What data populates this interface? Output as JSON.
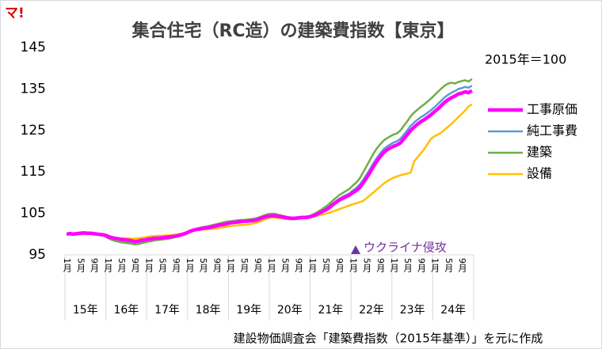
{
  "logo": "マ!",
  "chart_data": {
    "type": "line",
    "title": "集合住宅（RC造）の建築費指数【東京】",
    "note": "2015年＝100",
    "source": "建設物価調査会「建築費指数（2015年基準）」を元に作成",
    "annotation": "ウクライナ侵攻",
    "categories": [
      "1月",
      null,
      null,
      null,
      "5月",
      null,
      null,
      null,
      "9月",
      null,
      null,
      null,
      "1月",
      null,
      null,
      null,
      "5月",
      null,
      null,
      null,
      "9月",
      null,
      null,
      null,
      "1月",
      null,
      null,
      null,
      "5月",
      null,
      null,
      null,
      "9月",
      null,
      null,
      null,
      "1月",
      null,
      null,
      null,
      "5月",
      null,
      null,
      null,
      "9月",
      null,
      null,
      null,
      "1月",
      null,
      null,
      null,
      "5月",
      null,
      null,
      null,
      "9月",
      null,
      null,
      null,
      "1月",
      null,
      null,
      null,
      "5月",
      null,
      null,
      null,
      "9月",
      null,
      null,
      null,
      "1月",
      null,
      null,
      null,
      "5月",
      null,
      null,
      null,
      "9月",
      null,
      null,
      null,
      "1月",
      null,
      null,
      null,
      "5月",
      null,
      null,
      null,
      "9月",
      null,
      null,
      null,
      "1月",
      null,
      null,
      null,
      "5月",
      null,
      null,
      null,
      "9月",
      null,
      null,
      null,
      "1月",
      null,
      null,
      null,
      "5月",
      null,
      null,
      null,
      "9月",
      null,
      null,
      null
    ],
    "year_labels": [
      "15年",
      "16年",
      "17年",
      "18年",
      "19年",
      "20年",
      "21年",
      "22年",
      "23年",
      "24年"
    ],
    "ylim": [
      95,
      145
    ],
    "yticks": [
      95,
      105,
      115,
      125,
      135,
      145
    ],
    "series": [
      {
        "name": "工事原価",
        "color": "#ff00ff",
        "values": [
          100.0,
          100.1,
          100.0,
          100.1,
          100.2,
          100.3,
          100.2,
          100.2,
          100.1,
          100.0,
          99.9,
          99.8,
          99.5,
          99.2,
          99.0,
          98.9,
          98.7,
          98.6,
          98.5,
          98.4,
          98.2,
          98.3,
          98.5,
          98.6,
          98.8,
          98.9,
          99.0,
          99.0,
          99.1,
          99.2,
          99.3,
          99.4,
          99.5,
          99.7,
          99.9,
          100.2,
          100.6,
          100.9,
          101.1,
          101.2,
          101.4,
          101.5,
          101.6,
          101.8,
          102.0,
          102.2,
          102.3,
          102.5,
          102.7,
          102.8,
          102.9,
          103.0,
          103.1,
          103.1,
          103.2,
          103.3,
          103.5,
          103.8,
          104.1,
          104.3,
          104.4,
          104.4,
          104.3,
          104.2,
          104.0,
          103.9,
          103.8,
          103.8,
          103.9,
          104.0,
          104.0,
          104.1,
          104.3,
          104.6,
          105.0,
          105.4,
          105.8,
          106.3,
          107.0,
          107.6,
          108.2,
          108.6,
          109.0,
          109.4,
          110.0,
          110.5,
          111.2,
          112.3,
          113.5,
          114.8,
          116.2,
          117.5,
          118.6,
          119.6,
          120.3,
          120.8,
          121.2,
          121.5,
          122.0,
          123.0,
          124.0,
          125.0,
          125.8,
          126.5,
          127.1,
          127.6,
          128.2,
          128.8,
          129.5,
          130.2,
          131.0,
          131.8,
          132.4,
          132.9,
          133.3,
          133.8,
          134.0,
          134.3,
          134.1,
          134.6
        ]
      },
      {
        "name": "純工事費",
        "color": "#5b9bd5",
        "values": [
          100.0,
          100.1,
          100.1,
          100.2,
          100.2,
          100.3,
          100.3,
          100.2,
          100.1,
          100.0,
          99.9,
          99.8,
          99.4,
          99.1,
          98.9,
          98.7,
          98.5,
          98.4,
          98.3,
          98.2,
          98.0,
          98.1,
          98.3,
          98.4,
          98.6,
          98.7,
          98.8,
          98.9,
          99.0,
          99.1,
          99.2,
          99.3,
          99.4,
          99.6,
          99.9,
          100.2,
          100.6,
          100.9,
          101.2,
          101.3,
          101.5,
          101.6,
          101.7,
          101.9,
          102.1,
          102.3,
          102.5,
          102.7,
          102.9,
          103.0,
          103.1,
          103.2,
          103.2,
          103.3,
          103.4,
          103.5,
          103.7,
          104.0,
          104.3,
          104.5,
          104.6,
          104.6,
          104.5,
          104.3,
          104.1,
          104.0,
          103.9,
          103.9,
          104.0,
          104.1,
          104.1,
          104.2,
          104.4,
          104.8,
          105.2,
          105.6,
          106.1,
          106.6,
          107.3,
          107.9,
          108.5,
          109.0,
          109.4,
          109.8,
          110.5,
          111.1,
          111.9,
          113.0,
          114.3,
          115.6,
          117.0,
          118.3,
          119.4,
          120.4,
          121.1,
          121.6,
          122.1,
          122.4,
          123.0,
          124.0,
          125.0,
          126.1,
          126.9,
          127.6,
          128.2,
          128.7,
          129.3,
          129.9,
          130.6,
          131.4,
          132.2,
          133.0,
          133.6,
          134.1,
          134.5,
          135.0,
          135.2,
          135.5,
          135.3,
          135.8
        ]
      },
      {
        "name": "建築",
        "color": "#70ad47",
        "values": [
          100.0,
          100.1,
          100.1,
          100.2,
          100.3,
          100.3,
          100.3,
          100.2,
          100.1,
          100.0,
          99.8,
          99.6,
          99.1,
          98.7,
          98.4,
          98.2,
          98.0,
          97.9,
          97.8,
          97.7,
          97.5,
          97.6,
          97.8,
          98.0,
          98.2,
          98.3,
          98.5,
          98.6,
          98.7,
          98.8,
          98.9,
          99.1,
          99.3,
          99.5,
          99.8,
          100.2,
          100.6,
          101.0,
          101.3,
          101.5,
          101.7,
          101.8,
          102.0,
          102.2,
          102.4,
          102.6,
          102.8,
          103.0,
          103.1,
          103.2,
          103.3,
          103.4,
          103.4,
          103.5,
          103.6,
          103.7,
          103.9,
          104.2,
          104.5,
          104.8,
          104.9,
          104.9,
          104.7,
          104.5,
          104.3,
          104.1,
          104.0,
          104.0,
          104.1,
          104.2,
          104.2,
          104.3,
          104.6,
          105.0,
          105.5,
          106.0,
          106.6,
          107.2,
          108.0,
          108.7,
          109.4,
          109.9,
          110.4,
          110.9,
          111.7,
          112.4,
          113.4,
          114.8,
          116.3,
          117.8,
          119.3,
          120.6,
          121.6,
          122.5,
          123.1,
          123.6,
          124.0,
          124.3,
          125.0,
          126.1,
          127.2,
          128.4,
          129.3,
          130.0,
          130.7,
          131.3,
          132.0,
          132.7,
          133.5,
          134.3,
          135.1,
          135.8,
          136.3,
          136.5,
          136.3,
          136.7,
          136.9,
          137.1,
          136.8,
          137.4
        ]
      },
      {
        "name": "設備",
        "color": "#ffc000",
        "values": [
          100.0,
          100.0,
          99.9,
          100.0,
          100.1,
          100.1,
          100.0,
          100.0,
          99.9,
          99.8,
          99.7,
          99.6,
          99.4,
          99.2,
          99.1,
          99.0,
          99.0,
          99.0,
          99.0,
          98.9,
          98.9,
          99.0,
          99.1,
          99.2,
          99.4,
          99.5,
          99.5,
          99.6,
          99.6,
          99.7,
          99.7,
          99.8,
          99.9,
          100.0,
          100.2,
          100.4,
          100.7,
          100.9,
          101.0,
          101.0,
          101.1,
          101.1,
          101.2,
          101.3,
          101.4,
          101.5,
          101.6,
          101.8,
          101.9,
          102.0,
          102.1,
          102.2,
          102.2,
          102.3,
          102.4,
          102.6,
          102.8,
          103.1,
          103.5,
          103.8,
          104.0,
          104.0,
          103.9,
          103.8,
          103.7,
          103.6,
          103.6,
          103.6,
          103.7,
          103.8,
          103.9,
          104.0,
          104.1,
          104.3,
          104.5,
          104.7,
          104.9,
          105.1,
          105.4,
          105.7,
          106.0,
          106.3,
          106.6,
          106.9,
          107.2,
          107.4,
          107.7,
          108.0,
          108.6,
          109.3,
          110.0,
          110.7,
          111.4,
          112.1,
          112.7,
          113.2,
          113.6,
          113.9,
          114.2,
          114.4,
          114.6,
          114.8,
          117.5,
          118.5,
          119.5,
          120.5,
          121.8,
          123.0,
          123.6,
          124.0,
          124.5,
          125.2,
          125.9,
          126.6,
          127.4,
          128.2,
          129.0,
          129.8,
          130.8,
          131.3
        ]
      }
    ]
  }
}
